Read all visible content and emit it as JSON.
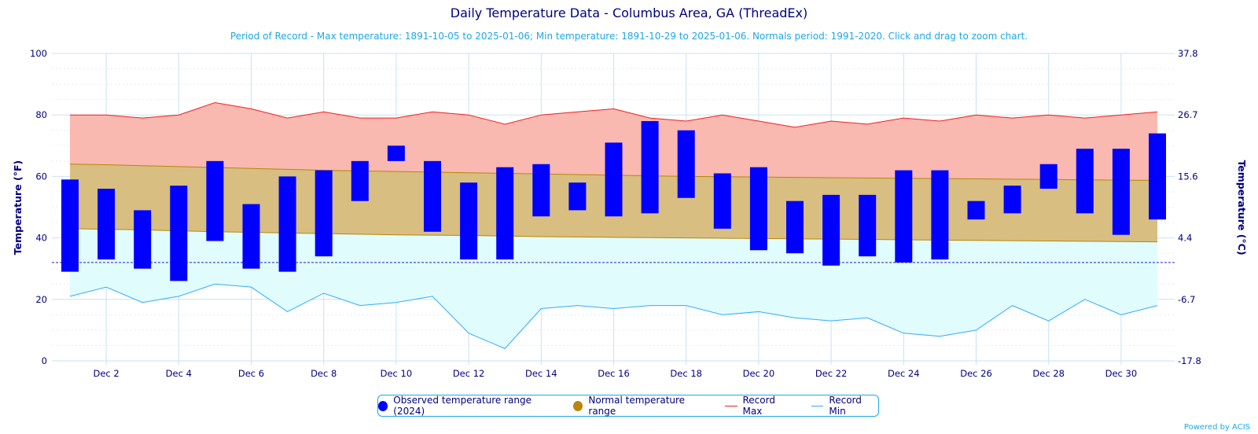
{
  "chart_data": {
    "type": "bar",
    "title": "Daily Temperature Data - Columbus Area, GA (ThreadEx)",
    "subtitle": "Period of Record - Max temperature: 1891-10-05 to 2025-01-06; Min temperature: 1891-10-29 to 2025-01-06. Normals period: 1991-2020. Click and drag to zoom chart.",
    "ylabel": "Temperature (°F)",
    "y2label": "Temperature (°C)",
    "ylim": [
      0,
      100
    ],
    "yticks": [
      "0",
      "20",
      "40",
      "60",
      "80",
      "100"
    ],
    "y2ticks": [
      "-17.8",
      "-6.7",
      "4.4",
      "15.6",
      "26.7",
      "37.8"
    ],
    "xticks": [
      "Dec 2",
      "Dec 4",
      "Dec 6",
      "Dec 8",
      "Dec 10",
      "Dec 12",
      "Dec 14",
      "Dec 16",
      "Dec 18",
      "Dec 20",
      "Dec 22",
      "Dec 24",
      "Dec 26",
      "Dec 28",
      "Dec 30"
    ],
    "days": [
      1,
      2,
      3,
      4,
      5,
      6,
      7,
      8,
      9,
      10,
      11,
      12,
      13,
      14,
      15,
      16,
      17,
      18,
      19,
      20,
      21,
      22,
      23,
      24,
      25,
      26,
      27,
      28,
      29,
      30,
      31
    ],
    "freezing_line": 32,
    "observed_low": [
      29,
      33,
      30,
      26,
      39,
      30,
      29,
      34,
      52,
      65,
      42,
      33,
      33,
      47,
      49,
      47,
      48,
      53,
      43,
      36,
      35,
      31,
      34,
      32,
      33,
      46,
      48,
      56,
      48,
      41,
      46
    ],
    "observed_high": [
      59,
      56,
      49,
      57,
      65,
      51,
      60,
      62,
      65,
      70,
      65,
      58,
      63,
      64,
      58,
      71,
      78,
      75,
      61,
      63,
      52,
      54,
      54,
      62,
      62,
      52,
      57,
      64,
      69,
      69,
      74
    ],
    "normal_high": [
      64,
      63.8,
      63.5,
      63.2,
      62.9,
      62.6,
      62.3,
      62.0,
      61.8,
      61.6,
      61.4,
      61.2,
      61.0,
      60.8,
      60.6,
      60.4,
      60.2,
      60.0,
      59.9,
      59.8,
      59.7,
      59.6,
      59.5,
      59.4,
      59.3,
      59.2,
      59.1,
      59.0,
      58.9,
      58.8,
      58.7
    ],
    "normal_low": [
      43,
      42.8,
      42.6,
      42.3,
      42.0,
      41.8,
      41.6,
      41.4,
      41.2,
      41.0,
      40.9,
      40.8,
      40.6,
      40.4,
      40.3,
      40.2,
      40.1,
      40.0,
      39.9,
      39.8,
      39.7,
      39.6,
      39.5,
      39.4,
      39.3,
      39.2,
      39.1,
      39.0,
      38.9,
      38.8,
      38.7
    ],
    "record_max": [
      80,
      80,
      79,
      80,
      84,
      82,
      79,
      81,
      79,
      79,
      81,
      80,
      77,
      80,
      81,
      82,
      79,
      78,
      80,
      78,
      76,
      78,
      77,
      79,
      78,
      80,
      79,
      80,
      79,
      80,
      81
    ],
    "record_min": [
      21,
      24,
      19,
      21,
      25,
      24,
      16,
      22,
      18,
      19,
      21,
      9,
      4,
      17,
      18,
      17,
      18,
      18,
      15,
      16,
      14,
      13,
      14,
      9,
      8,
      10,
      18,
      13,
      20,
      15,
      18
    ],
    "colors": {
      "observed": "#0000ff",
      "normal_fill": "#d8be80",
      "normal_line": "#b8860b",
      "record_max_line": "#ee2222",
      "record_max_fill": "#f9b8b0",
      "record_min_line": "#33aaff",
      "record_min_fill": "#e0fcfc",
      "grid": "#c8e2f2",
      "axis_text": "#000080"
    },
    "legend": [
      {
        "label": "Observed temperature range (2024)",
        "kind": "dot",
        "color": "#0000ff"
      },
      {
        "label": "Normal temperature range",
        "kind": "dot",
        "color": "#b8860b"
      },
      {
        "label": "Record Max",
        "kind": "line",
        "color": "#ee2222"
      },
      {
        "label": "Record Min",
        "kind": "line",
        "color": "#33aaff"
      }
    ],
    "credit": "Powered by ACIS"
  }
}
